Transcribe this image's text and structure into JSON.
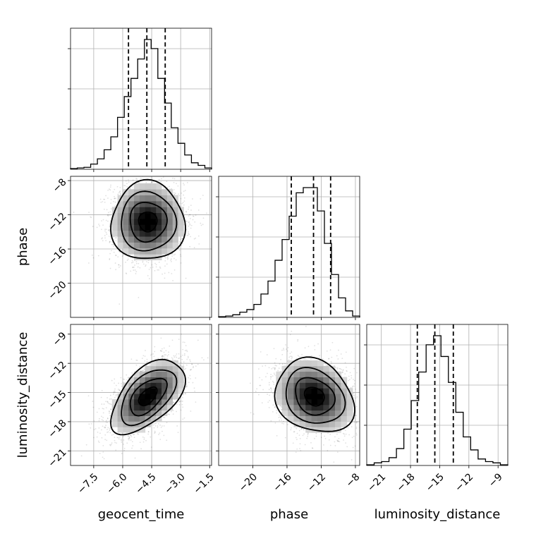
{
  "chart_data": {
    "type": "corner",
    "parameters": [
      "geocent_time",
      "phase",
      "luminosity_distance"
    ],
    "axes": {
      "geocent_time": {
        "label": "geocent_time",
        "range": [
          -8.7,
          -1.4
        ],
        "ticks": [
          -7.5,
          -6.0,
          -4.5,
          -3.0,
          -1.5
        ],
        "tick_labels": [
          "−7.5",
          "−6.0",
          "−4.5",
          "−3.0",
          "−1.5"
        ],
        "quantiles": [
          -5.7,
          -4.75,
          -3.8
        ],
        "mean": -4.7,
        "sd": 0.95
      },
      "phase": {
        "label": "phase",
        "range": [
          -24,
          -7.5
        ],
        "ticks": [
          -20,
          -16,
          -12,
          -8
        ],
        "tick_labels": [
          "−20",
          "−16",
          "−12",
          "−8"
        ],
        "quantiles": [
          -15.5,
          -12.9,
          -10.9
        ],
        "mean": -12.8,
        "sd": 2.3
      },
      "luminosity_distance": {
        "label": "luminosity_distance",
        "range": [
          -22.5,
          -8
        ],
        "ticks": [
          -21,
          -18,
          -15,
          -12,
          -9
        ],
        "tick_labels": [
          "−21",
          "−18",
          "−15",
          "−12",
          "−9"
        ],
        "quantiles": [
          -17.3,
          -15.5,
          -13.6
        ],
        "mean": -15.4,
        "sd": 1.9
      }
    },
    "histograms": {
      "geocent_time": [
        0.005,
        0.01,
        0.015,
        0.04,
        0.08,
        0.15,
        0.25,
        0.4,
        0.56,
        0.7,
        0.85,
        1.0,
        0.93,
        0.7,
        0.51,
        0.32,
        0.2,
        0.11,
        0.05,
        0.03,
        0.01
      ],
      "phase": [
        0.005,
        0.01,
        0.02,
        0.04,
        0.06,
        0.1,
        0.18,
        0.28,
        0.44,
        0.6,
        0.78,
        0.96,
        1.0,
        1.0,
        0.82,
        0.57,
        0.33,
        0.15,
        0.05,
        0.01
      ],
      "luminosity_distance": [
        0.005,
        0.02,
        0.03,
        0.06,
        0.13,
        0.28,
        0.5,
        0.72,
        0.93,
        1.0,
        0.84,
        0.64,
        0.41,
        0.22,
        0.12,
        0.05,
        0.03,
        0.02,
        0.005
      ]
    },
    "correlations": {
      "phase_vs_geocent_time": 0.0,
      "luminosity_distance_vs_geocent_time": 0.55,
      "luminosity_distance_vs_phase": -0.2
    },
    "grid": true
  }
}
